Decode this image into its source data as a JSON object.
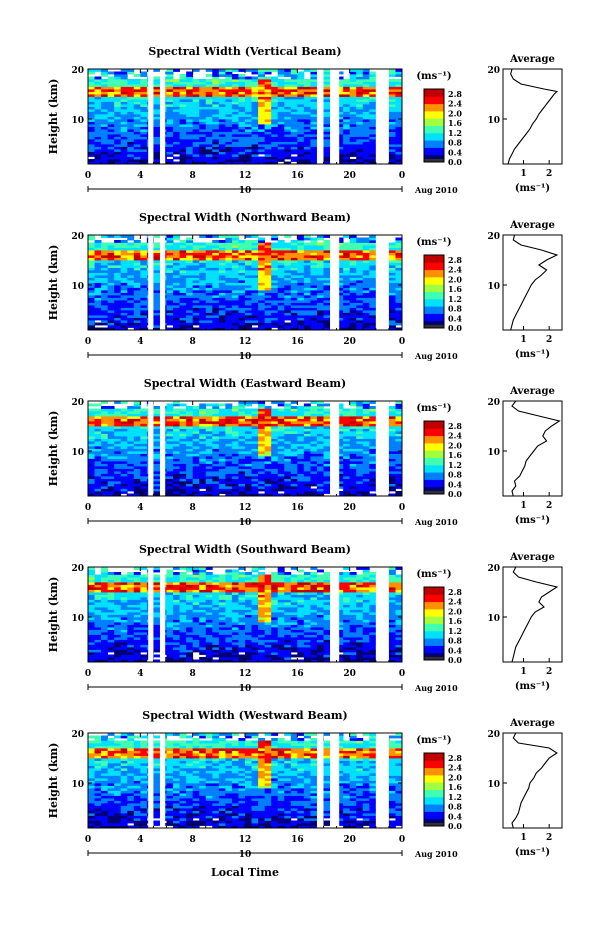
{
  "figure": {
    "xlabel": "Local Time",
    "date_label": "Aug 2010",
    "day_label": "10",
    "avg_title": "Average",
    "unit_label": "(ms⁻¹)",
    "ylabel": "Height (km)",
    "colorbar_ticks": [
      "2.8",
      "2.4",
      "2.0",
      "1.6",
      "1.2",
      "0.8",
      "0.4",
      "0.0"
    ],
    "colors": {
      "scale": [
        "#000070",
        "#0000ff",
        "#0080ff",
        "#00e0ff",
        "#40ffb0",
        "#a0ff40",
        "#ffff00",
        "#ff9000",
        "#ff0000",
        "#c00000"
      ],
      "background": "#ffffff"
    }
  },
  "chart_data": [
    {
      "type": "heatmap",
      "title": "Spectral Width (Vertical Beam)",
      "xlabel": "",
      "ylabel": "Height (km)",
      "xlim": [
        0,
        24
      ],
      "ylim": [
        1,
        20
      ],
      "xticks": [
        "0",
        "4",
        "8",
        "12",
        "16",
        "20",
        "0"
      ],
      "yticks": [
        "10",
        "20"
      ],
      "colorbar": {
        "label": "(ms⁻¹)",
        "range": [
          0,
          3.0
        ]
      },
      "tropopause_km": 15.5,
      "data_gaps_h": [
        [
          4.6,
          5.0
        ],
        [
          5.5,
          5.9
        ],
        [
          17.5,
          18.0
        ],
        [
          18.5,
          19.2
        ],
        [
          22.0,
          23.0
        ]
      ],
      "average_profile": {
        "title": "Average",
        "xlabel": "(ms⁻¹)",
        "xticks": [
          "1",
          "2"
        ],
        "yticks": [
          "10",
          "20"
        ],
        "height_km": [
          1,
          2,
          3,
          4,
          5,
          6,
          7,
          8,
          9,
          10,
          11,
          12,
          13,
          14,
          15,
          15.5,
          16,
          17,
          18,
          19,
          20
        ],
        "value": [
          0.4,
          0.45,
          0.55,
          0.65,
          0.8,
          0.95,
          1.1,
          1.25,
          1.35,
          1.5,
          1.6,
          1.75,
          1.9,
          2.05,
          2.2,
          2.3,
          1.8,
          0.9,
          0.6,
          0.5,
          0.55
        ]
      }
    },
    {
      "type": "heatmap",
      "title": "Spectral Width (Northward Beam)",
      "xlabel": "",
      "ylabel": "Height (km)",
      "xlim": [
        0,
        24
      ],
      "ylim": [
        1,
        20
      ],
      "xticks": [
        "0",
        "4",
        "8",
        "12",
        "16",
        "20",
        "0"
      ],
      "yticks": [
        "10",
        "20"
      ],
      "colorbar": {
        "label": "(ms⁻¹)",
        "range": [
          0,
          3.0
        ]
      },
      "tropopause_km": 16.0,
      "data_gaps_h": [
        [
          4.6,
          5.0
        ],
        [
          5.5,
          5.9
        ],
        [
          18.5,
          19.2
        ],
        [
          22.0,
          23.0
        ]
      ],
      "average_profile": {
        "title": "Average",
        "xlabel": "(ms⁻¹)",
        "xticks": [
          "1",
          "2"
        ],
        "yticks": [
          "10",
          "20"
        ],
        "height_km": [
          1,
          2,
          3,
          4,
          5,
          6,
          7,
          8,
          9,
          10,
          11,
          12,
          13,
          14,
          15,
          16,
          17,
          18,
          19,
          20
        ],
        "value": [
          0.5,
          0.55,
          0.6,
          0.7,
          0.8,
          0.9,
          1.0,
          1.1,
          1.2,
          1.3,
          1.45,
          1.7,
          1.9,
          1.6,
          1.9,
          2.3,
          1.7,
          0.9,
          0.6,
          0.65
        ]
      }
    },
    {
      "type": "heatmap",
      "title": "Spectral Width (Eastward Beam)",
      "xlabel": "",
      "ylabel": "Height (km)",
      "xlim": [
        0,
        24
      ],
      "ylim": [
        1,
        20
      ],
      "xticks": [
        "0",
        "4",
        "8",
        "12",
        "16",
        "20",
        "0"
      ],
      "yticks": [
        "10",
        "20"
      ],
      "colorbar": {
        "label": "(ms⁻¹)",
        "range": [
          0,
          3.0
        ]
      },
      "tropopause_km": 16.0,
      "data_gaps_h": [
        [
          4.6,
          5.0
        ],
        [
          5.5,
          5.9
        ],
        [
          18.5,
          19.2
        ],
        [
          22.0,
          23.0
        ]
      ],
      "average_profile": {
        "title": "Average",
        "xlabel": "(ms⁻¹)",
        "xticks": [
          "1",
          "2"
        ],
        "yticks": [
          "10",
          "20"
        ],
        "height_km": [
          1,
          2,
          3,
          4,
          5,
          6,
          7,
          8,
          9,
          10,
          11,
          12,
          13,
          14,
          15,
          16,
          17,
          18,
          19,
          20
        ],
        "value": [
          0.6,
          0.55,
          0.7,
          0.65,
          0.85,
          0.95,
          1.05,
          1.1,
          1.25,
          1.4,
          1.55,
          1.9,
          1.75,
          1.85,
          2.1,
          2.4,
          1.6,
          0.8,
          0.55,
          0.7
        ]
      }
    },
    {
      "type": "heatmap",
      "title": "Spectral Width (Southward Beam)",
      "xlabel": "",
      "ylabel": "Height (km)",
      "xlim": [
        0,
        24
      ],
      "ylim": [
        1,
        20
      ],
      "xticks": [
        "0",
        "4",
        "8",
        "12",
        "16",
        "20",
        "0"
      ],
      "yticks": [
        "10",
        "20"
      ],
      "colorbar": {
        "label": "(ms⁻¹)",
        "range": [
          0,
          3.0
        ]
      },
      "tropopause_km": 16.0,
      "data_gaps_h": [
        [
          4.6,
          5.0
        ],
        [
          5.5,
          5.9
        ],
        [
          18.5,
          19.2
        ],
        [
          22.0,
          23.0
        ]
      ],
      "average_profile": {
        "title": "Average",
        "xlabel": "(ms⁻¹)",
        "xticks": [
          "1",
          "2"
        ],
        "yticks": [
          "10",
          "20"
        ],
        "height_km": [
          1,
          2,
          3,
          4,
          5,
          6,
          7,
          8,
          9,
          10,
          11,
          12,
          13,
          14,
          15,
          16,
          17,
          18,
          19,
          20
        ],
        "value": [
          0.55,
          0.6,
          0.65,
          0.7,
          0.8,
          0.9,
          1.0,
          1.1,
          1.2,
          1.3,
          1.45,
          1.8,
          1.6,
          1.7,
          2.0,
          2.3,
          1.5,
          0.8,
          0.6,
          0.7
        ]
      }
    },
    {
      "type": "heatmap",
      "title": "Spectral Width (Westward Beam)",
      "xlabel": "Local Time",
      "ylabel": "Height (km)",
      "xlim": [
        0,
        24
      ],
      "ylim": [
        1,
        20
      ],
      "xticks": [
        "0",
        "4",
        "8",
        "12",
        "16",
        "20",
        "0"
      ],
      "yticks": [
        "10",
        "20"
      ],
      "colorbar": {
        "label": "(ms⁻¹)",
        "range": [
          0,
          3.0
        ]
      },
      "tropopause_km": 16.0,
      "data_gaps_h": [
        [
          4.6,
          5.0
        ],
        [
          5.5,
          5.9
        ],
        [
          17.5,
          18.0
        ],
        [
          18.5,
          19.2
        ],
        [
          22.0,
          23.0
        ]
      ],
      "average_profile": {
        "title": "Average",
        "xlabel": "(ms⁻¹)",
        "xticks": [
          "1",
          "2"
        ],
        "yticks": [
          "10",
          "20"
        ],
        "height_km": [
          1,
          2,
          3,
          4,
          5,
          6,
          7,
          8,
          9,
          10,
          11,
          12,
          13,
          14,
          15,
          16,
          17,
          18,
          19,
          20
        ],
        "value": [
          0.6,
          0.55,
          0.7,
          0.8,
          0.85,
          0.9,
          1.0,
          1.1,
          1.2,
          1.25,
          1.4,
          1.5,
          1.7,
          1.85,
          2.0,
          2.3,
          2.0,
          0.8,
          0.6,
          0.7
        ]
      }
    }
  ]
}
